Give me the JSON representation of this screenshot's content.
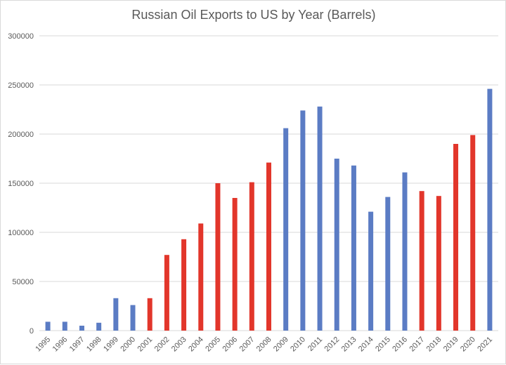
{
  "chart_data": {
    "type": "bar",
    "title": "Russian Oil Exports to US by Year (Barrels)",
    "xlabel": "",
    "ylabel": "",
    "ylim": [
      0,
      300000
    ],
    "yticks": [
      "0",
      "50000",
      "100000",
      "150000",
      "200000",
      "250000",
      "300000"
    ],
    "grid": true,
    "legend": "none",
    "categories": [
      "1995",
      "1996",
      "1997",
      "1998",
      "1999",
      "2000",
      "2001",
      "2002",
      "2003",
      "2004",
      "2005",
      "2006",
      "2007",
      "2008",
      "2009",
      "2010",
      "2011",
      "2012",
      "2013",
      "2014",
      "2015",
      "2016",
      "2017",
      "2018",
      "2019",
      "2020",
      "2021"
    ],
    "values": [
      9000,
      9000,
      5000,
      8000,
      33000,
      26000,
      33000,
      77000,
      93000,
      109000,
      150000,
      135000,
      151000,
      171000,
      206000,
      224000,
      228000,
      175000,
      168000,
      121000,
      136000,
      161000,
      142000,
      137000,
      190000,
      199000,
      246000
    ],
    "bar_colors": [
      "#5b7cc4",
      "#5b7cc4",
      "#5b7cc4",
      "#5b7cc4",
      "#5b7cc4",
      "#5b7cc4",
      "#e2362b",
      "#e2362b",
      "#e2362b",
      "#e2362b",
      "#e2362b",
      "#e2362b",
      "#e2362b",
      "#e2362b",
      "#5b7cc4",
      "#5b7cc4",
      "#5b7cc4",
      "#5b7cc4",
      "#5b7cc4",
      "#5b7cc4",
      "#5b7cc4",
      "#5b7cc4",
      "#e2362b",
      "#e2362b",
      "#e2362b",
      "#e2362b",
      "#5b7cc4"
    ]
  }
}
